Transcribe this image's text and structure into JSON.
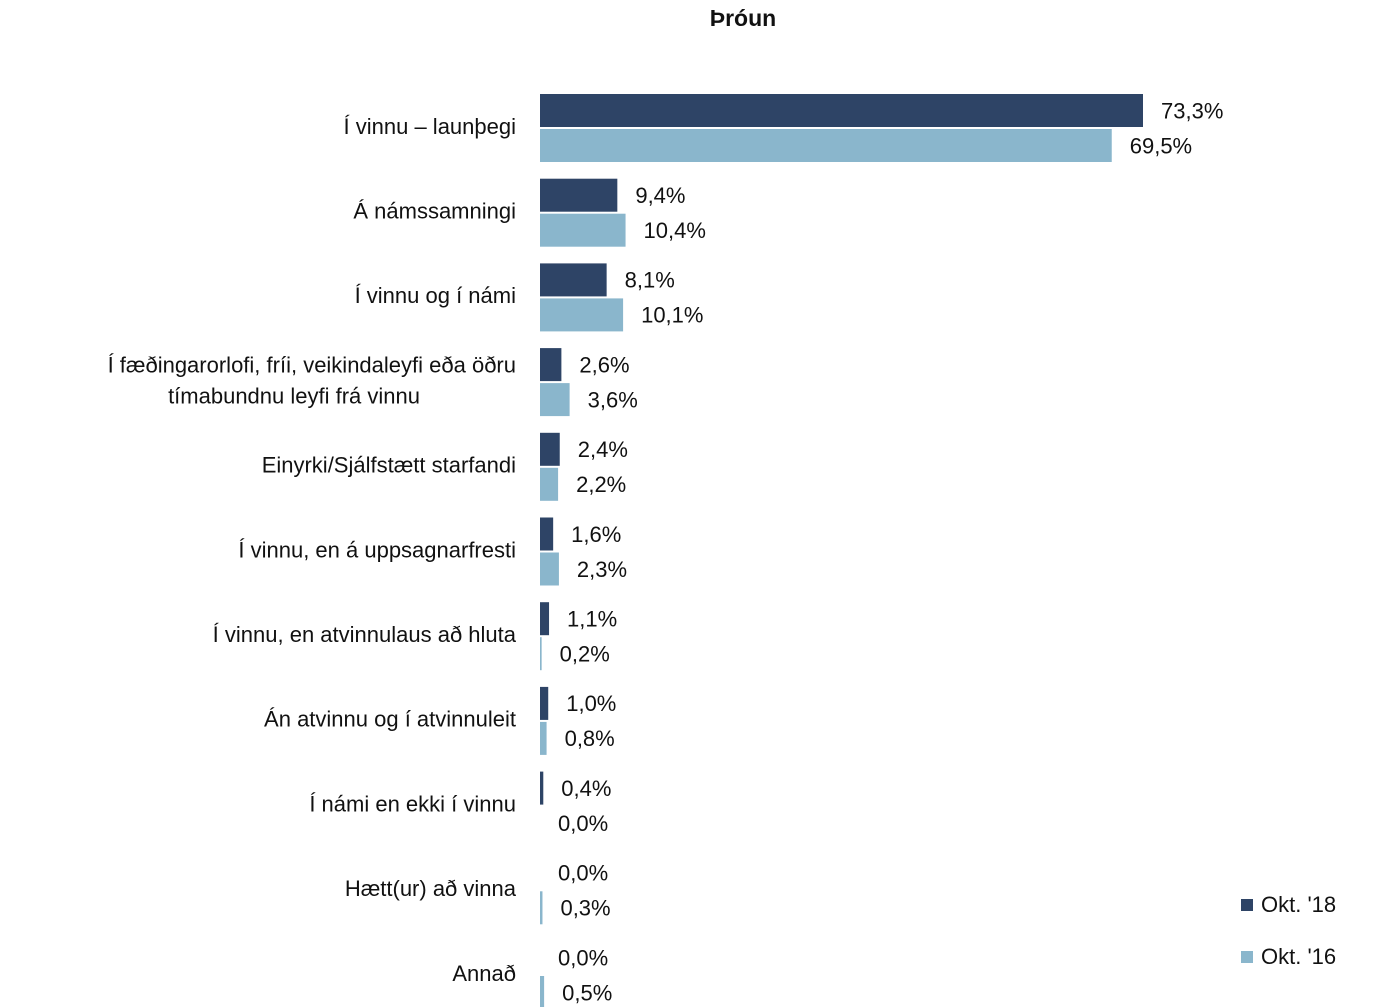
{
  "chart_data": {
    "type": "barh",
    "title": "Þróun",
    "categories": [
      "Í vinnu  – launþegi",
      "Á námssamningi",
      "Í vinnu og í námi",
      "Í fæðingarorlofi, fríi, veikindaleyfi eða öðru\ntímabundnu leyfi frá vinnu",
      "Einyrki/Sjálfstætt starfandi",
      "Í vinnu, en á uppsagnarfresti",
      "Í vinnu, en atvinnulaus að hluta",
      "Án atvinnu og í atvinnuleit",
      "Í námi en ekki í vinnu",
      "Hætt(ur) að vinna",
      "Annað"
    ],
    "series": [
      {
        "name": "Okt. '18",
        "color": "#2e4466",
        "values": [
          73.3,
          9.4,
          8.1,
          2.6,
          2.4,
          1.6,
          1.1,
          1.0,
          0.4,
          0.0,
          0.0
        ],
        "value_labels": [
          "73,3%",
          "9,4%",
          "8,1%",
          "2,6%",
          "2,4%",
          "1,6%",
          "1,1%",
          "1,0%",
          "0,4%",
          "0,0%",
          "0,0%"
        ]
      },
      {
        "name": "Okt. '16",
        "color": "#8ab6cc",
        "values": [
          69.5,
          10.4,
          10.1,
          3.6,
          2.2,
          2.3,
          0.2,
          0.8,
          0.0,
          0.3,
          0.5
        ],
        "value_labels": [
          "69,5%",
          "10,4%",
          "10,1%",
          "3,6%",
          "2,2%",
          "2,3%",
          "0,2%",
          "0,8%",
          "0,0%",
          "0,3%",
          "0,5%"
        ]
      }
    ],
    "legend": "bottom-right"
  }
}
